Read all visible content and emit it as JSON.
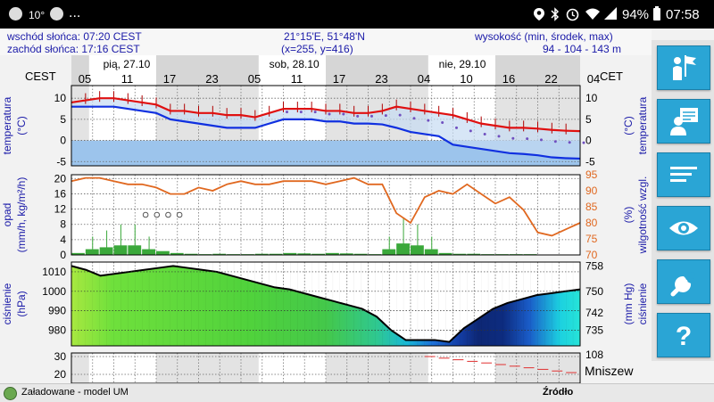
{
  "status_bar": {
    "temp": "10°",
    "dots": "...",
    "battery": "94%",
    "time": "07:58"
  },
  "info": {
    "sunrise": "wschód słońca: 07:20 CEST",
    "sunset": "zachód słońca: 17:16 CEST",
    "coords": "21°15'E, 51°48'N",
    "grid": "(x=255,  y=416)",
    "altitude_label": "wysokość (min, środek, max)",
    "altitude_values": "94 - 104 - 143 m"
  },
  "chart_data": [
    {
      "type": "line",
      "title": "",
      "tz_left": "CEST",
      "tz_right": "CET",
      "day_labels": [
        "pią, 27.10",
        "sob, 28.10",
        "nie, 29.10"
      ],
      "hour_labels": [
        "05",
        "11",
        "17",
        "23",
        "05",
        "11",
        "17",
        "23",
        "04",
        "10",
        "16",
        "22",
        "04"
      ],
      "ylabel": "temperatura (°C)",
      "ylabel_right": "temperatura (°C)",
      "yticks": [
        10,
        5,
        0,
        -5
      ],
      "ylim": [
        -6,
        13
      ],
      "series": [
        {
          "values": [
            9,
            9.5,
            10,
            10,
            9.5,
            9,
            8.5,
            7,
            7,
            6.5,
            6.5,
            6,
            6,
            5.5,
            6.5,
            7.5,
            7.5,
            7.5,
            7,
            7,
            6.5,
            6.5,
            7,
            8,
            7.5,
            7,
            6.5,
            6,
            5,
            4,
            3.5,
            3,
            3,
            2.8,
            2.5,
            2.3,
            2.2
          ]
        },
        {
          "values": [
            8,
            8,
            8,
            8,
            7.5,
            7,
            6.5,
            5,
            4.5,
            4,
            3.5,
            3,
            3,
            3,
            4,
            5,
            5,
            5,
            4.5,
            4.5,
            4,
            4,
            3.8,
            3,
            2,
            1.5,
            1,
            -1,
            -1.5,
            -2,
            -2.5,
            -3,
            -3.2,
            -3.5,
            -4,
            -4.2,
            -4.3
          ]
        }
      ],
      "colors": {
        "series1": "#e01010",
        "series2": "#1030e0",
        "band": "#9cc4ec"
      }
    },
    {
      "type": "bar",
      "ylabel": "opad (mm/h, kg/m²/h)",
      "ylabel_right": "wilgotność wzgl. (%)",
      "yticks": [
        20,
        16,
        12,
        8,
        4,
        0
      ],
      "yticks_right": [
        95,
        90,
        85,
        80,
        75,
        70
      ],
      "ylim": [
        0,
        21
      ],
      "series": [
        {
          "values": [
            0.5,
            1.5,
            2,
            2.5,
            2.5,
            1.5,
            1,
            0.5,
            0.3,
            0.2,
            0.3,
            0.2,
            0.2,
            0.3,
            0.3,
            0.5,
            0.4,
            0.3,
            0.5,
            0.4,
            0.3,
            0.2,
            1.5,
            3,
            2.5,
            1.5,
            0.5,
            0.3,
            0.3,
            0.2,
            0.2,
            0.2,
            0.2,
            0.1,
            0.1,
            0.1
          ]
        },
        {
          "values": [
            93,
            94,
            94,
            93,
            92,
            92,
            91,
            89,
            89,
            91,
            90,
            92,
            93,
            92,
            92,
            93,
            93,
            93,
            92,
            93,
            94,
            92,
            92,
            83,
            80,
            88,
            90,
            89,
            92,
            89,
            86,
            88,
            84,
            77,
            76,
            78,
            80
          ]
        }
      ]
    },
    {
      "type": "area",
      "ylabel": "ciśnienie (hPa)",
      "ylabel_right": "ciśnienie (mm Hg)",
      "yticks": [
        1010,
        1000,
        990,
        980
      ],
      "yticks_right": [
        758,
        750,
        742,
        735
      ],
      "ylim": [
        972,
        1015
      ],
      "series": [
        {
          "values": [
            1013,
            1011,
            1008,
            1009,
            1010,
            1011,
            1012,
            1013,
            1012,
            1011,
            1010,
            1008,
            1006,
            1004,
            1002,
            1001,
            999,
            997,
            995,
            993,
            991,
            987,
            980,
            975,
            975,
            975,
            974,
            981,
            986,
            991,
            994,
            996,
            998,
            999,
            1000,
            1001
          ]
        }
      ]
    },
    {
      "type": "line",
      "yticks": [
        30,
        20
      ],
      "yticks_right": [
        108
      ],
      "series": []
    }
  ],
  "sidebar": {
    "buttons": [
      "flag-person-icon",
      "contact-card-icon",
      "list-icon",
      "eye-icon",
      "wrench-icon",
      "question-icon"
    ]
  },
  "location": "Mniszew",
  "footer": {
    "status": "Załadowane - model UM",
    "source": "Źródło"
  }
}
